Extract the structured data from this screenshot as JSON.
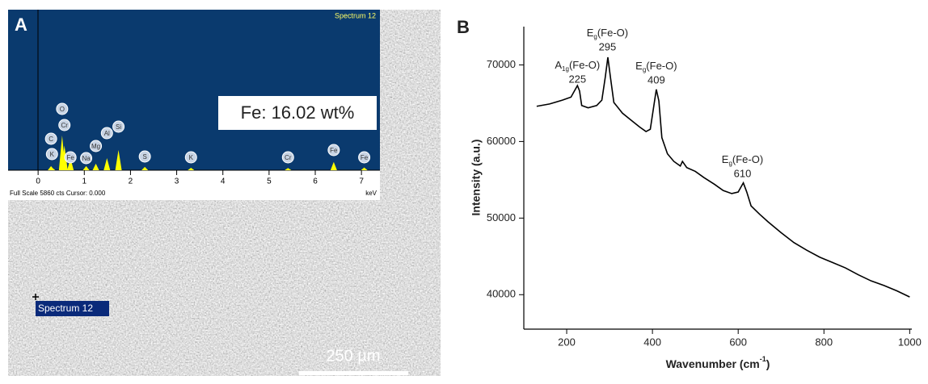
{
  "chart_data": [
    {
      "type": "eds",
      "panel": "A",
      "spectrum_title": "Spectrum 12",
      "annotation": "Fe: 16.02 wt%",
      "x_unit": "keV",
      "footer": "Full Scale 5860 cts Cursor: 0.000",
      "image_label": "Spectrum 12",
      "scale_bar": "250 µm",
      "xlim": [
        -0.65,
        7.4
      ],
      "xticks": [
        0,
        1,
        2,
        3,
        4,
        5,
        6,
        7
      ],
      "ylim": [
        0,
        5860
      ],
      "color": "#ffff00",
      "peaks": [
        {
          "label": "O",
          "x": 0.52,
          "value": 1270
        },
        {
          "label": "Cr",
          "x": 0.57,
          "value": 900
        },
        {
          "label": "C",
          "x": 0.28,
          "value": 150
        },
        {
          "label": "K",
          "x": 0.3,
          "value": 100
        },
        {
          "label": "Fe",
          "x": 0.7,
          "value": 440
        },
        {
          "label": "Na",
          "x": 1.04,
          "value": 150
        },
        {
          "label": "Mg",
          "x": 1.25,
          "value": 240
        },
        {
          "label": "Al",
          "x": 1.49,
          "value": 440
        },
        {
          "label": "Si",
          "x": 1.74,
          "value": 740
        },
        {
          "label": "S",
          "x": 2.31,
          "value": 120
        },
        {
          "label": "K",
          "x": 3.31,
          "value": 90
        },
        {
          "label": "Cr",
          "x": 5.41,
          "value": 80
        },
        {
          "label": "Fe",
          "x": 6.4,
          "value": 300
        },
        {
          "label": "Fe",
          "x": 7.06,
          "value": 100
        }
      ]
    },
    {
      "type": "line",
      "panel": "B",
      "y_label": "Intensity (a.u.)",
      "x_label": {
        "text": "Wavenumber (cm",
        "superscript": "-1",
        "suffix": ")"
      },
      "xlim": [
        100,
        1005
      ],
      "xticks": [
        200,
        400,
        600,
        800,
        1000
      ],
      "ylim": [
        35500,
        75000
      ],
      "yticks": [
        40000,
        50000,
        60000,
        70000
      ],
      "color": "#000000",
      "x": [
        130,
        160,
        190,
        210,
        218,
        225,
        230,
        235,
        250,
        270,
        282,
        290,
        296,
        302,
        310,
        330,
        350,
        370,
        385,
        395,
        402,
        409,
        415,
        422,
        435,
        450,
        465,
        470,
        480,
        500,
        520,
        545,
        565,
        585,
        600,
        612,
        620,
        630,
        650,
        670,
        700,
        730,
        760,
        790,
        820,
        850,
        880,
        910,
        940,
        970,
        1000
      ],
      "values": [
        64600,
        64900,
        65400,
        65800,
        66600,
        67300,
        66600,
        64700,
        64400,
        64700,
        65400,
        68400,
        71000,
        68400,
        65100,
        63700,
        62800,
        61900,
        61300,
        61600,
        64200,
        66800,
        65300,
        60500,
        58400,
        57400,
        56800,
        57400,
        56600,
        56100,
        55300,
        54400,
        53600,
        53200,
        53400,
        54600,
        53400,
        51600,
        50500,
        49500,
        48100,
        46800,
        45800,
        44900,
        44200,
        43500,
        42600,
        41800,
        41200,
        40500,
        39700
      ],
      "annotations": [
        {
          "symbol": "A",
          "subscript": "1g",
          "species": "(Fe-O)",
          "x": 225
        },
        {
          "symbol": "E",
          "subscript": "g",
          "species": "(Fe-O)",
          "x": 295
        },
        {
          "symbol": "E",
          "subscript": "g",
          "species": "(Fe-O)",
          "x": 409
        },
        {
          "symbol": "E",
          "subscript": "g",
          "species": "(Fe-O)",
          "x": 610
        }
      ]
    }
  ]
}
